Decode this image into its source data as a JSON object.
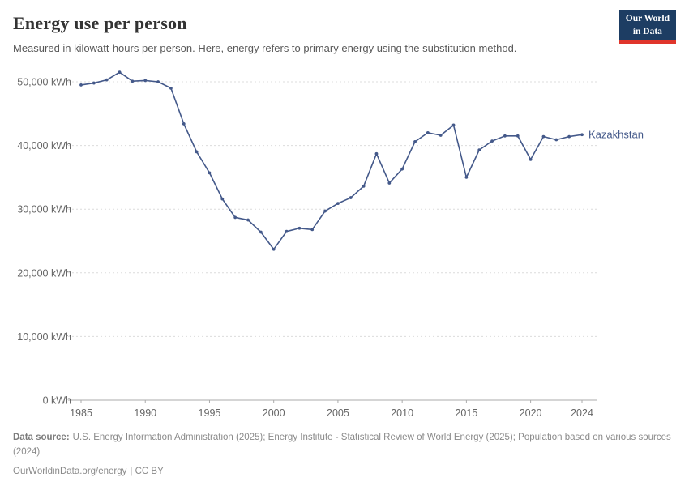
{
  "header": {
    "title": "Energy use per person",
    "subtitle": "Measured in kilowatt-hours per person. Here, energy refers to primary energy using the substitution method.",
    "logo": {
      "line1": "Our World",
      "line2": "in Data",
      "bg_color": "#1d3d63",
      "accent_color": "#e0352b"
    }
  },
  "chart_data": {
    "type": "line",
    "title": "Energy use per person",
    "unit": "kWh",
    "grid": "horizontal dashed gridlines",
    "legend_position": "end-of-line label",
    "ylim": [
      0,
      50000
    ],
    "x": [
      1985,
      1986,
      1987,
      1988,
      1989,
      1990,
      1991,
      1992,
      1993,
      1994,
      1995,
      1996,
      1997,
      1998,
      1999,
      2000,
      2001,
      2002,
      2003,
      2004,
      2005,
      2006,
      2007,
      2008,
      2009,
      2010,
      2011,
      2012,
      2013,
      2014,
      2015,
      2016,
      2017,
      2018,
      2019,
      2020,
      2021,
      2022,
      2023,
      2024
    ],
    "x_ticks": [
      1985,
      1990,
      1995,
      2000,
      2005,
      2010,
      2015,
      2020,
      2024
    ],
    "y_ticks": [
      {
        "value": 0,
        "label": "0 kWh"
      },
      {
        "value": 10000,
        "label": "10,000 kWh"
      },
      {
        "value": 20000,
        "label": "20,000 kWh"
      },
      {
        "value": 30000,
        "label": "30,000 kWh"
      },
      {
        "value": 40000,
        "label": "40,000 kWh"
      },
      {
        "value": 50000,
        "label": "50,000 kWh"
      }
    ],
    "series": [
      {
        "name": "Kazakhstan",
        "color": "#44598a",
        "values": [
          49500,
          49800,
          50300,
          51500,
          50100,
          50200,
          50000,
          49000,
          43400,
          39000,
          35700,
          31600,
          28700,
          28300,
          26400,
          23700,
          26500,
          27000,
          26800,
          29700,
          30900,
          31800,
          33600,
          38700,
          34100,
          36300,
          40600,
          42000,
          41600,
          43200,
          35000,
          39300,
          40700,
          41500,
          41500,
          37800,
          41400,
          40900,
          41400,
          41700
        ]
      }
    ]
  },
  "footer": {
    "source_label": "Data source:",
    "source_text": "U.S. Energy Information Administration (2025); Energy Institute - Statistical Review of World Energy (2025); Population based on various sources (2024)",
    "license_url": "OurWorldinData.org/energy",
    "license_suffix": "| CC BY"
  }
}
